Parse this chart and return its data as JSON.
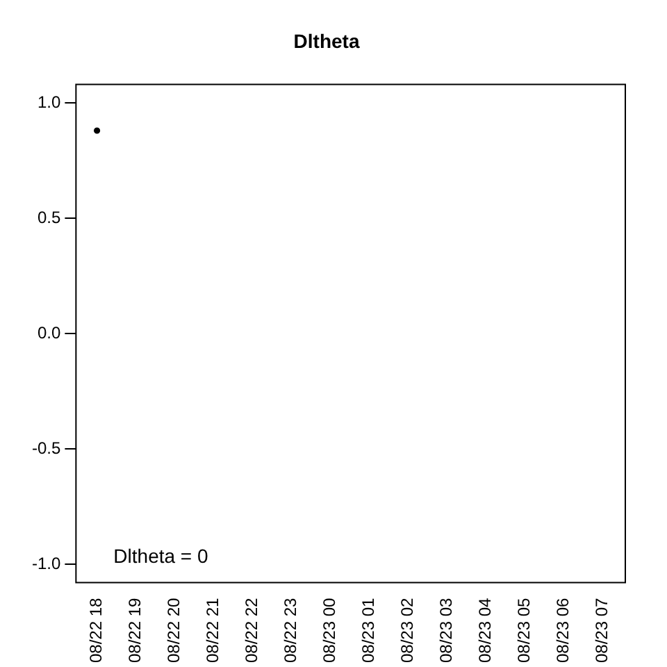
{
  "chart_data": {
    "type": "scatter",
    "title": "Dltheta",
    "categories": [
      "08/22 18",
      "08/22 19",
      "08/22 20",
      "08/22 21",
      "08/22 22",
      "08/22 23",
      "08/23 00",
      "08/23 01",
      "08/23 02",
      "08/23 03",
      "08/23 04",
      "08/23 05",
      "08/23 06",
      "08/23 07"
    ],
    "values": [
      0.88,
      null,
      null,
      null,
      null,
      null,
      null,
      null,
      null,
      null,
      null,
      null,
      null,
      null
    ],
    "color": "#000000",
    "marker": "circle",
    "ylim": [
      -1.08,
      1.08
    ],
    "yticks": [
      {
        "value": -1,
        "label": "-1.0"
      },
      {
        "value": -0.5,
        "label": "-0.5"
      },
      {
        "value": 0,
        "label": "0.0"
      },
      {
        "value": 0.5,
        "label": "0.5"
      },
      {
        "value": 1,
        "label": "1.0"
      }
    ],
    "grid": false,
    "legend": false,
    "annotations": [
      "Dltheta = 0"
    ]
  }
}
